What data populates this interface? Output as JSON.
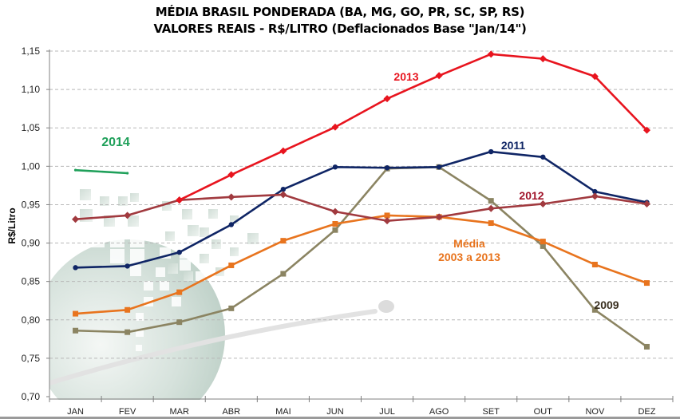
{
  "chart_data": {
    "type": "line",
    "title": "MÉDIA BRASIL PONDERADA (BA, MG, GO, PR, SC, SP, RS)",
    "subtitle": "VALORES REAIS - R$/LITRO (Deflacionados Base \"Jan/14\")",
    "xlabel": "",
    "ylabel": "R$/Litro",
    "ylim": [
      0.7,
      1.15
    ],
    "yticks": [
      0.7,
      0.75,
      0.8,
      0.85,
      0.9,
      0.95,
      1.0,
      1.05,
      1.1,
      1.15
    ],
    "ytick_labels": [
      "0,70",
      "0,75",
      "0,80",
      "0,85",
      "0,90",
      "0,95",
      "1,00",
      "1,05",
      "1,10",
      "1,15"
    ],
    "categories": [
      "JAN",
      "FEV",
      "MAR",
      "ABR",
      "MAI",
      "JUN",
      "JUL",
      "AGO",
      "SET",
      "OUT",
      "NOV",
      "DEZ"
    ],
    "grid": "horizontal-dashed",
    "legend": "inline-labels",
    "series": [
      {
        "name": "2009",
        "label": "2009",
        "color": "#8b8462",
        "label_color": "#3a3020",
        "marker": "square",
        "values": [
          0.786,
          0.784,
          0.797,
          0.815,
          0.86,
          0.917,
          0.997,
          0.999,
          0.955,
          0.896,
          0.813,
          0.765
        ]
      },
      {
        "name": "Média 2003 a 2013",
        "label": "Média|2003 a 2013",
        "color": "#e8741e",
        "label_color": "#e8741e",
        "marker": "square",
        "values": [
          0.808,
          0.813,
          0.836,
          0.871,
          0.903,
          0.925,
          0.936,
          0.934,
          0.926,
          0.902,
          0.872,
          0.848
        ]
      },
      {
        "name": "2011",
        "label": "2011",
        "color": "#0f2565",
        "label_color": "#0f2565",
        "marker": "circle",
        "values": [
          0.868,
          0.87,
          0.888,
          0.924,
          0.97,
          0.999,
          0.998,
          0.999,
          1.019,
          1.012,
          0.967,
          0.953
        ]
      },
      {
        "name": "2012",
        "label": "2012",
        "color": "#a13a3f",
        "label_color": "#a0142a",
        "marker": "diamond",
        "values": [
          0.931,
          0.936,
          0.956,
          0.96,
          0.963,
          0.941,
          0.929,
          0.934,
          0.945,
          0.951,
          0.961,
          0.951
        ]
      },
      {
        "name": "2013",
        "label": "2013",
        "color": "#e8141e",
        "label_color": "#e8141e",
        "marker": "diamond",
        "values": [
          null,
          null,
          0.956,
          0.989,
          1.02,
          1.051,
          1.088,
          1.118,
          1.146,
          1.14,
          1.117,
          1.047
        ]
      },
      {
        "name": "2014",
        "label": "2014",
        "color": "#1fa05a",
        "label_color": "#1fa05a",
        "marker": "none",
        "values": [
          0.995,
          0.991,
          null,
          null,
          null,
          null,
          null,
          null,
          null,
          null,
          null,
          null
        ]
      }
    ]
  }
}
